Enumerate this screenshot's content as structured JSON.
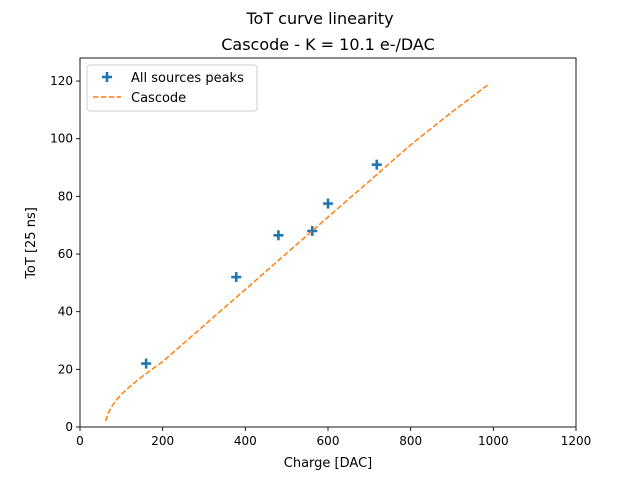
{
  "chart_data": {
    "type": "scatter",
    "title": "ToT curve linearity",
    "subtitle": "Cascode - K = 10.1 e-/DAC",
    "xlabel": "Charge [DAC]",
    "ylabel": "ToT [25 ns]",
    "xlim": [
      0,
      1200
    ],
    "ylim": [
      0,
      128
    ],
    "xticks": [
      0,
      200,
      400,
      600,
      800,
      1000,
      1200
    ],
    "yticks": [
      0,
      20,
      40,
      60,
      80,
      100,
      120
    ],
    "grid": false,
    "legend_position": "top-left",
    "series": [
      {
        "name": "All sources peaks",
        "kind": "scatter",
        "marker": "plus",
        "color": "#1f77b4",
        "x": [
          160,
          378,
          480,
          562,
          600,
          718
        ],
        "y": [
          22,
          52,
          66.5,
          68,
          77.5,
          91
        ]
      },
      {
        "name": "Cascode",
        "kind": "line",
        "style": "dashed",
        "color": "#ff7f0e",
        "x": [
          62,
          65,
          70,
          75,
          80,
          90,
          100,
          110,
          120,
          135,
          150,
          170,
          200,
          300,
          400,
          500,
          600,
          700,
          800,
          900,
          990
        ],
        "y": [
          2,
          3.5,
          5.2,
          6.6,
          7.8,
          9.7,
          11.3,
          12.7,
          13.9,
          15.7,
          17.5,
          19.6,
          22.7,
          35.2,
          47.7,
          60.3,
          72.8,
          85.3,
          97.9,
          109.3,
          119
        ]
      }
    ]
  }
}
